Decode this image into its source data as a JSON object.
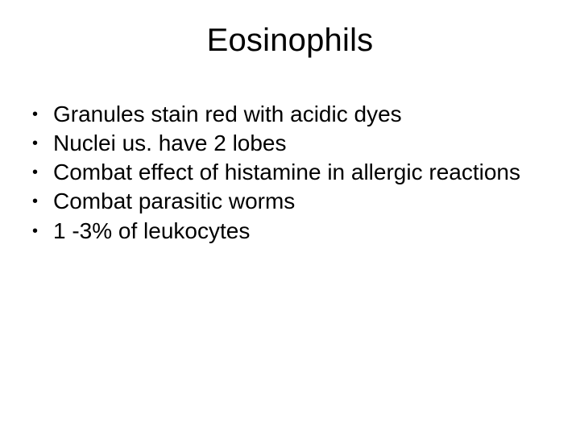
{
  "slide": {
    "title": "Eosinophils",
    "title_fontsize": 40,
    "body_fontsize": 28,
    "text_color": "#000000",
    "background_color": "#ffffff",
    "font_family": "Arial",
    "bullets": [
      "Granules stain red with acidic dyes",
      "Nuclei us. have 2 lobes",
      "Combat effect of histamine in allergic reactions",
      "Combat parasitic worms",
      "1 -3% of leukocytes"
    ]
  }
}
